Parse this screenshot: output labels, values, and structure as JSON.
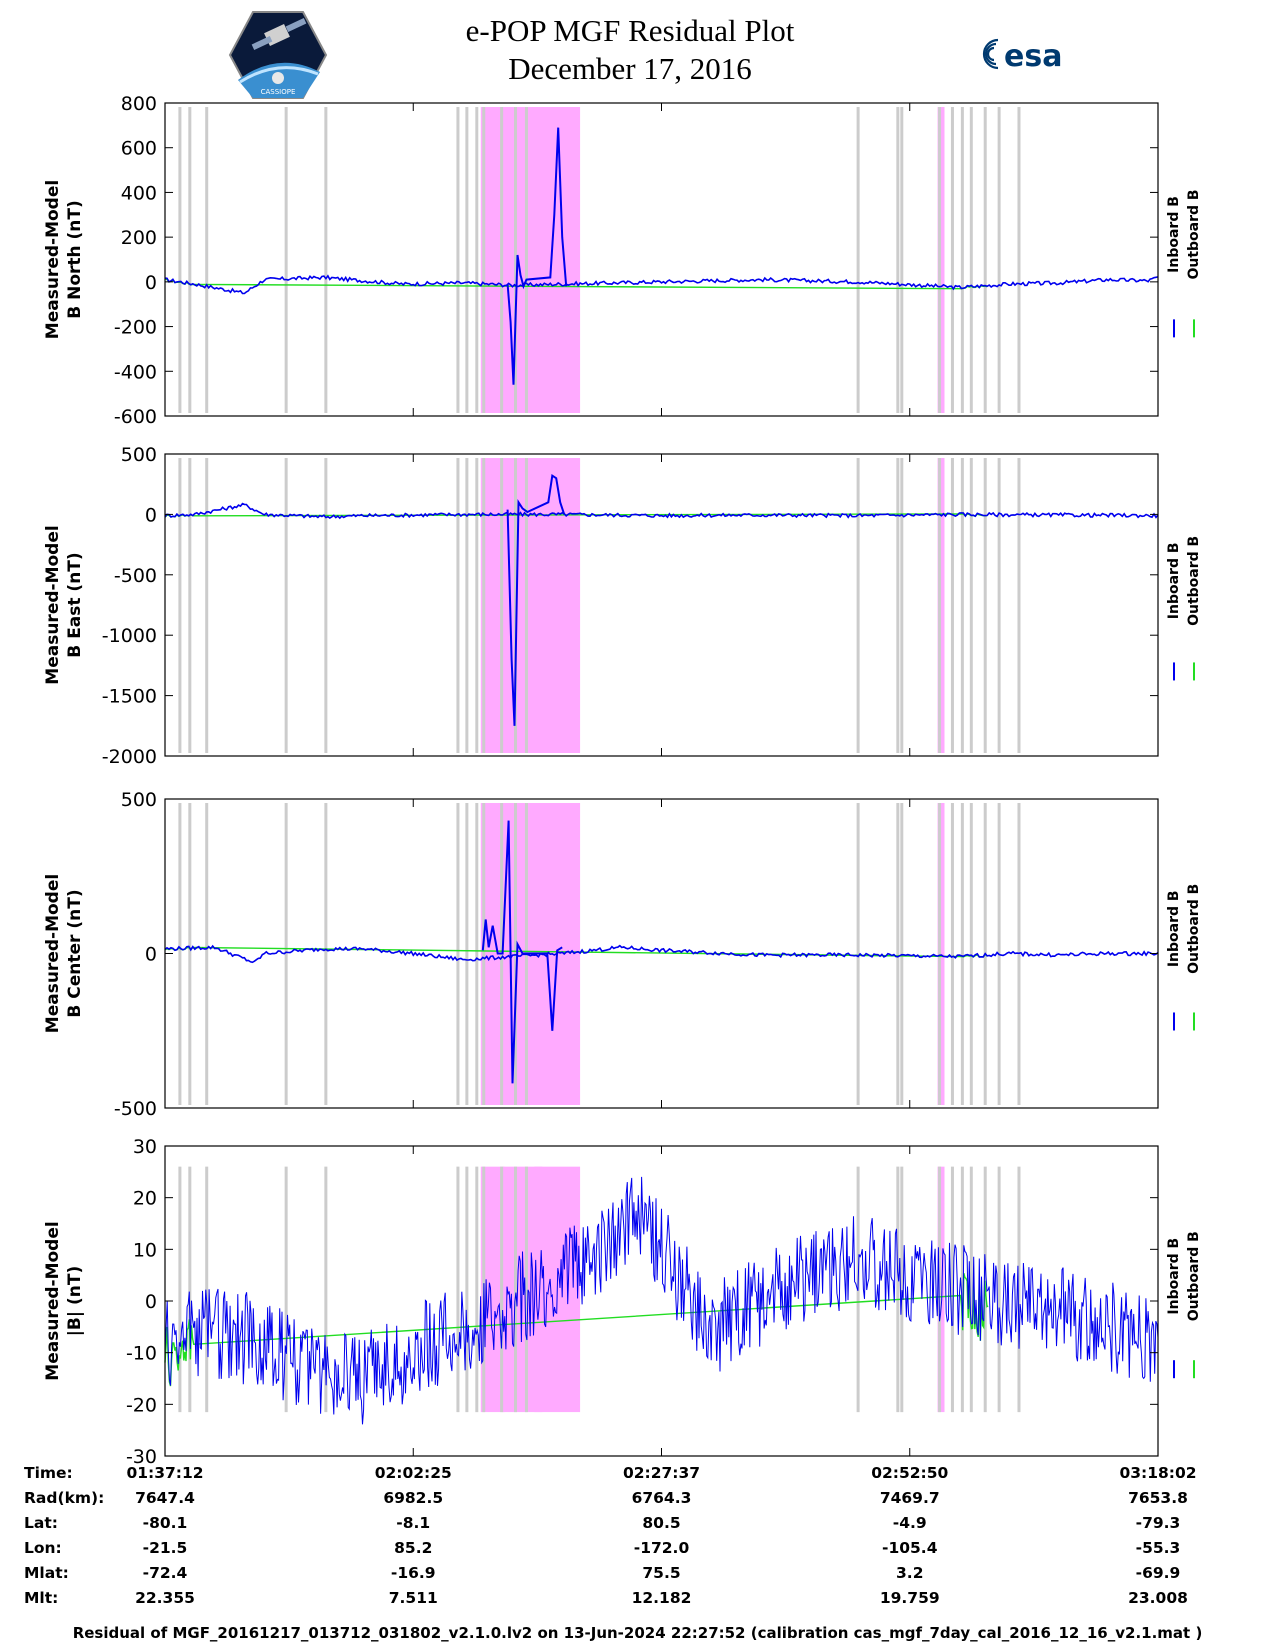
{
  "header": {
    "title_line1": "e-POP MGF Residual Plot",
    "title_line2": "December 17, 2016",
    "left_logo": "cassiope-mission-logo",
    "left_logo_text": "CASSIOPE",
    "right_logo": "esa-logo",
    "right_logo_text": "esa"
  },
  "colors": {
    "inboard": "#0000ee",
    "outboard": "#22dd22",
    "gray_band": "#cccccc",
    "magenta_band": "#ffaaff"
  },
  "chart_data": [
    {
      "type": "line",
      "id": "north",
      "ylabel": [
        "Measured-Model",
        "B North (nT)"
      ],
      "ylim": [
        -600,
        800
      ],
      "yticks": [
        800,
        600,
        400,
        200,
        0,
        -200,
        -400,
        -600
      ],
      "legend": [
        "Inboard B",
        "Outboard B"
      ],
      "series": [
        {
          "name": "Inboard B",
          "x": [
            0,
            3,
            8,
            10,
            16,
            20,
            24,
            30,
            35,
            45,
            60,
            70,
            80,
            85,
            90,
            95,
            99,
            100
          ],
          "y": [
            10,
            -10,
            -50,
            10,
            20,
            5,
            -10,
            -5,
            -15,
            -5,
            10,
            0,
            -25,
            -10,
            -5,
            10,
            5,
            20
          ]
        }
      ]
    },
    {
      "type": "line",
      "id": "east",
      "ylabel": [
        "Measured-Model",
        "B East (nT)"
      ],
      "ylim": [
        -2000,
        500
      ],
      "yticks": [
        500,
        0,
        -500,
        -1000,
        -1500,
        -2000
      ],
      "legend": [
        "Inboard B",
        "Outboard B"
      ],
      "series": [
        {
          "name": "Inboard B",
          "x": [
            0,
            3,
            8,
            10,
            16,
            20,
            30,
            40,
            50,
            60,
            70,
            80,
            90,
            100
          ],
          "y": [
            -10,
            0,
            80,
            0,
            -20,
            -10,
            0,
            0,
            -10,
            -5,
            -10,
            0,
            -5,
            -10
          ]
        }
      ]
    },
    {
      "type": "line",
      "id": "center",
      "ylabel": [
        "Measured-Model",
        "B Center (nT)"
      ],
      "ylim": [
        -500,
        500
      ],
      "yticks": [
        500,
        0,
        -500
      ],
      "legend": [
        "Inboard B",
        "Outboard B"
      ],
      "series": [
        {
          "name": "Inboard B",
          "x": [
            0,
            5,
            9,
            10,
            16,
            20,
            25,
            30,
            40,
            46,
            50,
            60,
            70,
            80,
            85,
            90,
            95,
            100
          ],
          "y": [
            15,
            20,
            -30,
            0,
            15,
            15,
            0,
            -20,
            0,
            20,
            10,
            -5,
            -5,
            -10,
            0,
            -5,
            0,
            0
          ]
        }
      ]
    },
    {
      "type": "line",
      "id": "total",
      "ylabel": [
        "Measured-Model",
        "|B| (nT)"
      ],
      "ylim": [
        -30,
        30
      ],
      "yticks": [
        30,
        20,
        10,
        0,
        -10,
        -20,
        -30
      ],
      "legend": [
        "Inboard B",
        "Outboard B"
      ],
      "series": [
        {
          "name": "Inboard B",
          "x": [
            0,
            5,
            10,
            15,
            20,
            25,
            30,
            35,
            40,
            45,
            48,
            50,
            55,
            60,
            65,
            70,
            75,
            80,
            85,
            90,
            95,
            100
          ],
          "y": [
            -8,
            -6,
            -8,
            -14,
            -15,
            -10,
            -5,
            0,
            5,
            12,
            18,
            10,
            -6,
            0,
            5,
            8,
            5,
            2,
            0,
            -2,
            -5,
            -8
          ]
        }
      ]
    }
  ],
  "spikes": [
    {
      "panel": "north",
      "x": [
        34.5,
        34.8,
        35.1,
        35.5,
        35.8,
        36.1,
        36.4,
        38.8,
        39.2,
        39.6,
        40.0,
        40.4
      ],
      "y": [
        -10,
        -180,
        -460,
        120,
        30,
        -20,
        10,
        20,
        300,
        690,
        200,
        -20
      ]
    },
    {
      "panel": "east",
      "x": [
        34.5,
        34.9,
        35.2,
        35.6,
        36.0,
        36.5,
        38.6,
        39.0,
        39.4,
        39.8,
        40.2
      ],
      "y": [
        40,
        -1200,
        -1750,
        100,
        50,
        20,
        100,
        320,
        300,
        100,
        0
      ]
    },
    {
      "panel": "center",
      "x": [
        32.0,
        32.3,
        32.6,
        33.0,
        33.5,
        34.0,
        34.6,
        35.0,
        35.5,
        36.0,
        38.5,
        39.0,
        39.5,
        40.0
      ],
      "y": [
        10,
        110,
        20,
        90,
        0,
        0,
        430,
        -420,
        30,
        0,
        0,
        -250,
        10,
        20
      ]
    }
  ],
  "bands": {
    "gray": [
      1.5,
      2.5,
      4.2,
      12.2,
      16.2,
      29.5,
      30.4,
      31.4,
      32.1,
      33.9,
      35.3,
      36.4,
      69.8,
      73.8,
      74.2,
      78.0,
      79.3,
      80.3,
      81.2,
      82.6,
      84.0,
      86.0
    ],
    "magenta": [
      [
        34.0,
        38.0
      ],
      [
        37.2,
        41.8
      ],
      [
        31.8,
        34.2
      ],
      [
        77.8,
        78.5
      ]
    ]
  },
  "x_axis": {
    "xlim": [
      0,
      100
    ],
    "ticks": [
      0,
      25,
      50,
      75,
      100
    ],
    "rows": [
      {
        "label": "Time:",
        "values": [
          "01:37:12",
          "02:02:25",
          "02:27:37",
          "02:52:50",
          "03:18:02"
        ]
      },
      {
        "label": "Rad(km):",
        "values": [
          "7647.4",
          "6982.5",
          "6764.3",
          "7469.7",
          "7653.8"
        ]
      },
      {
        "label": "Lat:",
        "values": [
          "-80.1",
          "-8.1",
          "80.5",
          "-4.9",
          "-79.3"
        ]
      },
      {
        "label": "Lon:",
        "values": [
          "-21.5",
          "85.2",
          "-172.0",
          "-105.4",
          "-55.3"
        ]
      },
      {
        "label": "Mlat:",
        "values": [
          "-72.4",
          "-16.9",
          "75.5",
          "3.2",
          "-69.9"
        ]
      },
      {
        "label": "Mlt:",
        "values": [
          "22.355",
          "7.511",
          "12.182",
          "19.759",
          "23.008"
        ]
      }
    ]
  },
  "footer": "Residual of MGF_20161217_013712_031802_v2.1.0.lv2 on 13-Jun-2024 22:27:52 (calibration cas_mgf_7day_cal_2016_12_16_v2.1.mat )"
}
